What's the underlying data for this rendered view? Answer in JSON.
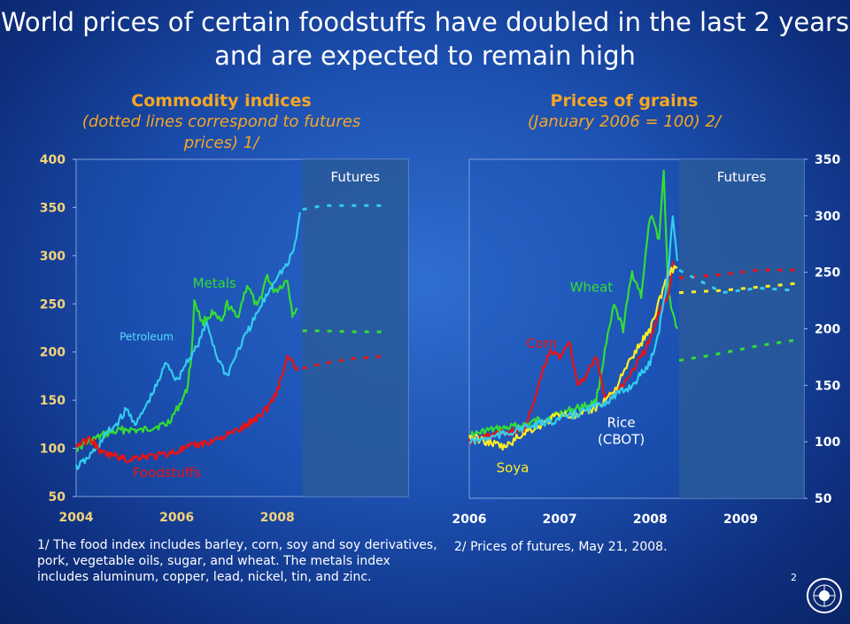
{
  "title_line1": "World prices of certain foodstuffs have doubled in the last 2 years",
  "title_line2": "and are expected to remain high",
  "footnote_left": "1/ The food index includes barley, corn, soy and soy derivatives, pork, vegetable oils, sugar, and wheat. The metals index includes aluminum, copper, lead, nickel, tin, and zinc.",
  "footnote_right": "2/ Prices of futures, May 21, 2008.",
  "page_number": "2",
  "colors": {
    "metals": "#33dd33",
    "petroleum": "#33ccee",
    "foodstuffs": "#ee1111",
    "wheat": "#33dd33",
    "corn": "#ee1111",
    "soya": "#ffee22",
    "rice": "#33ccee",
    "futures_band": "#2a5a9a"
  },
  "seal_icon": "imf-seal-icon",
  "chart_data": [
    {
      "type": "line",
      "title": "Commodity indices",
      "subtitle": "(dotted lines correspond to futures prices) 1/",
      "xlim": [
        2004.0,
        2010.6
      ],
      "ylim": [
        50,
        400
      ],
      "yticks": [
        50,
        100,
        150,
        200,
        250,
        300,
        350,
        400
      ],
      "xticks": [
        2004,
        2006,
        2008
      ],
      "futures_band": {
        "label": "Futures",
        "from": 2008.5,
        "to": 2010.6
      },
      "series": [
        {
          "name": "Metals",
          "color_key": "metals",
          "label_at": [
            2006.75,
            267
          ],
          "x": [
            2004.0,
            2004.3,
            2004.6,
            2005.0,
            2005.3,
            2005.5,
            2005.8,
            2006.0,
            2006.2,
            2006.3,
            2006.35,
            2006.5,
            2006.7,
            2006.9,
            2007.0,
            2007.2,
            2007.4,
            2007.6,
            2007.8,
            2007.9,
            2008.0,
            2008.2,
            2008.3,
            2008.4
          ],
          "y": [
            100,
            108,
            115,
            120,
            118,
            122,
            125,
            140,
            160,
            200,
            255,
            230,
            240,
            230,
            250,
            235,
            270,
            245,
            280,
            265,
            265,
            275,
            240,
            245
          ],
          "futures": {
            "x": [
              2008.5,
              2008.9,
              2009.5,
              2010.2
            ],
            "y": [
              222,
              222,
              221,
              221
            ]
          }
        },
        {
          "name": "Petroleum",
          "color_key": "petroleum",
          "label_at": [
            2005.4,
            212
          ],
          "x": [
            2004.0,
            2004.2,
            2004.4,
            2004.6,
            2004.8,
            2005.0,
            2005.2,
            2005.4,
            2005.6,
            2005.8,
            2006.0,
            2006.2,
            2006.4,
            2006.6,
            2006.8,
            2007.0,
            2007.2,
            2007.4,
            2007.6,
            2007.8,
            2008.0,
            2008.2,
            2008.35,
            2008.45
          ],
          "y": [
            80,
            88,
            100,
            115,
            125,
            140,
            125,
            145,
            165,
            190,
            170,
            190,
            205,
            230,
            195,
            175,
            200,
            220,
            240,
            260,
            280,
            290,
            310,
            345
          ],
          "futures": {
            "x": [
              2008.5,
              2008.9,
              2009.5,
              2010.2
            ],
            "y": [
              348,
              352,
              352,
              352
            ]
          }
        },
        {
          "name": "Foodstuffs",
          "color_key": "foodstuffs",
          "label_at": [
            2005.8,
            70
          ],
          "x": [
            2004.0,
            2004.3,
            2004.5,
            2004.8,
            2005.0,
            2005.3,
            2005.6,
            2006.0,
            2006.3,
            2006.6,
            2006.9,
            2007.2,
            2007.5,
            2007.8,
            2008.0,
            2008.2,
            2008.4
          ],
          "y": [
            103,
            110,
            95,
            92,
            88,
            92,
            92,
            97,
            102,
            106,
            112,
            118,
            128,
            142,
            160,
            195,
            180
          ],
          "futures": {
            "x": [
              2008.5,
              2008.9,
              2009.5,
              2010.2
            ],
            "y": [
              183,
              188,
              193,
              196
            ]
          }
        }
      ]
    },
    {
      "type": "line",
      "title": "Prices of grains",
      "subtitle": "(January 2006 = 100) 2/",
      "xlim": [
        2006.0,
        2009.7
      ],
      "ylim": [
        50,
        350
      ],
      "yticks": [
        50,
        100,
        150,
        200,
        250,
        300,
        350
      ],
      "xticks": [
        2006,
        2007,
        2008,
        2009
      ],
      "futures_band": {
        "label": "Futures",
        "from": 2008.32,
        "to": 2009.7
      },
      "series": [
        {
          "name": "Wheat",
          "color_key": "wheat",
          "label_at": [
            2007.35,
            233
          ],
          "x": [
            2006.0,
            2006.2,
            2006.4,
            2006.6,
            2006.8,
            2007.0,
            2007.2,
            2007.4,
            2007.5,
            2007.6,
            2007.7,
            2007.8,
            2007.9,
            2008.0,
            2008.1,
            2008.15,
            2008.2,
            2008.3
          ],
          "y": [
            105,
            110,
            112,
            115,
            120,
            125,
            130,
            135,
            180,
            220,
            200,
            250,
            230,
            300,
            280,
            340,
            230,
            200
          ],
          "futures": {
            "x": [
              2008.32,
              2008.7,
              2009.2,
              2009.6
            ],
            "y": [
              172,
              177,
              185,
              190
            ]
          }
        },
        {
          "name": "Corn",
          "color_key": "corn",
          "label_at": [
            2006.8,
            183
          ],
          "x": [
            2006.0,
            2006.2,
            2006.4,
            2006.6,
            2006.7,
            2006.8,
            2006.9,
            2007.0,
            2007.1,
            2007.2,
            2007.3,
            2007.4,
            2007.5,
            2007.7,
            2007.9,
            2008.0,
            2008.1,
            2008.2,
            2008.25
          ],
          "y": [
            100,
            105,
            108,
            110,
            130,
            160,
            180,
            175,
            190,
            150,
            160,
            175,
            140,
            150,
            175,
            190,
            215,
            230,
            260
          ],
          "futures": {
            "x": [
              2008.32,
              2008.8,
              2009.2,
              2009.6
            ],
            "y": [
              245,
              248,
              252,
              252
            ]
          }
        },
        {
          "name": "Soya",
          "color_key": "soya",
          "label_at": [
            2006.48,
            73
          ],
          "x": [
            2006.0,
            2006.2,
            2006.4,
            2006.6,
            2006.8,
            2007.0,
            2007.2,
            2007.4,
            2007.6,
            2007.8,
            2008.0,
            2008.2,
            2008.3
          ],
          "y": [
            105,
            100,
            95,
            108,
            115,
            125,
            122,
            130,
            145,
            175,
            200,
            250,
            255
          ],
          "futures": {
            "x": [
              2008.32,
              2008.8,
              2009.2,
              2009.6
            ],
            "y": [
              232,
              234,
              237,
              240
            ]
          }
        },
        {
          "name": "Rice\n(CBOT)",
          "color_key": "rice",
          "label_at": [
            2007.68,
            113
          ],
          "x": [
            2006.0,
            2006.3,
            2006.6,
            2006.9,
            2007.2,
            2007.5,
            2007.8,
            2008.0,
            2008.1,
            2008.2,
            2008.25,
            2008.3
          ],
          "y": [
            100,
            105,
            112,
            118,
            125,
            135,
            150,
            170,
            200,
            250,
            300,
            260
          ],
          "futures": {
            "x": [
              2008.32,
              2008.8,
              2009.2,
              2009.6
            ],
            "y": [
              252,
              232,
              236,
              234
            ]
          }
        }
      ]
    }
  ]
}
